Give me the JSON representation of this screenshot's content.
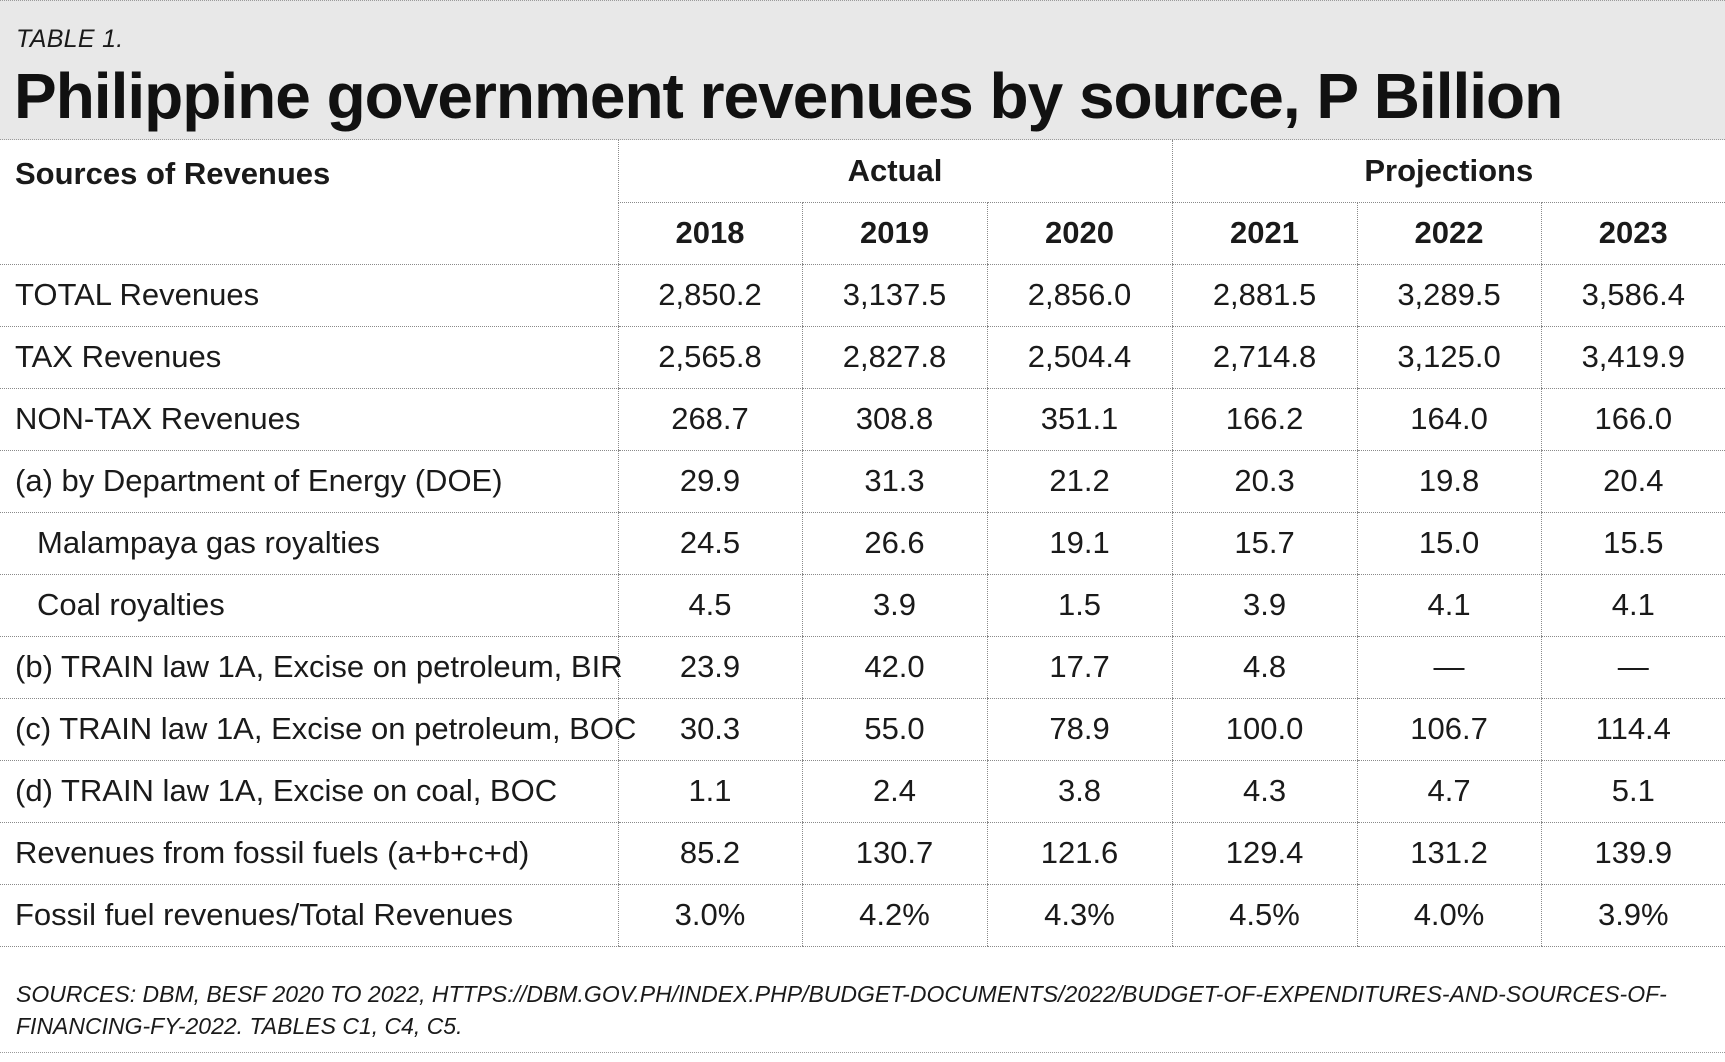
{
  "chart_data": {
    "type": "table",
    "table_label": "TABLE 1.",
    "title": "Philippine government revenues by source, P Billion",
    "corner_header": "Sources of Revenues",
    "groups": [
      {
        "label": "Actual",
        "span": 3
      },
      {
        "label": "Projections",
        "span": 3
      }
    ],
    "years": [
      "2018",
      "2019",
      "2020",
      "2021",
      "2022",
      "2023"
    ],
    "rows": [
      {
        "label": "TOTAL Revenues",
        "indent": false,
        "values": [
          "2,850.2",
          "3,137.5",
          "2,856.0",
          "2,881.5",
          "3,289.5",
          "3,586.4"
        ]
      },
      {
        "label": "TAX Revenues",
        "indent": false,
        "values": [
          "2,565.8",
          "2,827.8",
          "2,504.4",
          "2,714.8",
          "3,125.0",
          "3,419.9"
        ]
      },
      {
        "label": "NON-TAX Revenues",
        "indent": false,
        "values": [
          "268.7",
          "308.8",
          "351.1",
          "166.2",
          "164.0",
          "166.0"
        ]
      },
      {
        "label": "(a) by Department of Energy (DOE)",
        "indent": false,
        "values": [
          "29.9",
          "31.3",
          "21.2",
          "20.3",
          "19.8",
          "20.4"
        ]
      },
      {
        "label": "Malampaya gas royalties",
        "indent": true,
        "values": [
          "24.5",
          "26.6",
          "19.1",
          "15.7",
          "15.0",
          "15.5"
        ]
      },
      {
        "label": "Coal royalties",
        "indent": true,
        "values": [
          "4.5",
          "3.9",
          "1.5",
          "3.9",
          "4.1",
          "4.1"
        ]
      },
      {
        "label": "(b) TRAIN law 1A, Excise on petroleum, BIR",
        "indent": false,
        "values": [
          "23.9",
          "42.0",
          "17.7",
          "4.8",
          "—",
          "—"
        ]
      },
      {
        "label": "(c) TRAIN law 1A, Excise on petroleum, BOC",
        "indent": false,
        "values": [
          "30.3",
          "55.0",
          "78.9",
          "100.0",
          "106.7",
          "114.4"
        ]
      },
      {
        "label": "(d) TRAIN law 1A, Excise on coal, BOC",
        "indent": false,
        "values": [
          "1.1",
          "2.4",
          "3.8",
          "4.3",
          "4.7",
          "5.1"
        ]
      },
      {
        "label": "Revenues from fossil fuels (a+b+c+d)",
        "indent": false,
        "values": [
          "85.2",
          "130.7",
          "121.6",
          "129.4",
          "131.2",
          "139.9"
        ]
      },
      {
        "label": "Fossil fuel revenues/Total Revenues",
        "indent": false,
        "values": [
          "3.0%",
          "4.2%",
          "4.3%",
          "4.5%",
          "4.0%",
          "3.9%"
        ]
      }
    ],
    "source_note": "SOURCES: DBM, BESF 2020 TO 2022, HTTPS://DBM.GOV.PH/INDEX.PHP/BUDGET-DOCUMENTS/2022/BUDGET-OF-EXPENDITURES-AND-SOURCES-OF-FINANCING-FY-2022. TABLES C1, C4, C5."
  }
}
